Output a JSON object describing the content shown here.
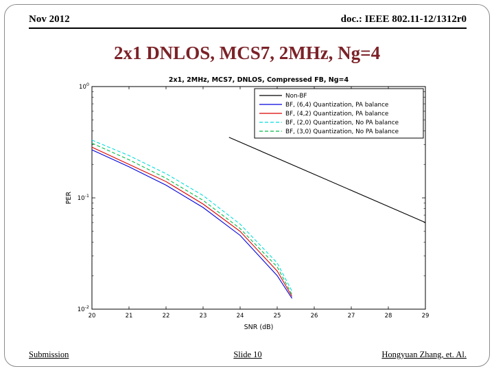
{
  "header": {
    "date": "Nov 2012",
    "doc": "doc.: IEEE 802.11-12/1312r0"
  },
  "title": "2x1 DNLOS, MCS7, 2MHz, Ng=4",
  "footer": {
    "left": "Submission",
    "center": "Slide 10",
    "right": "Hongyuan Zhang, et. Al."
  },
  "colors": {
    "title_color": "#7b2228",
    "axis_color": "#000000"
  },
  "chart_data": {
    "type": "line",
    "title": "2x1, 2MHz, MCS7, DNLOS, Compressed FB, Ng=4",
    "xlabel": "SNR (dB)",
    "ylabel": "PER",
    "xlim": [
      20,
      29
    ],
    "ylog_exponents": [
      0,
      -1,
      -2
    ],
    "x_ticks": [
      20,
      21,
      22,
      23,
      24,
      25,
      26,
      27,
      28,
      29
    ],
    "grid": false,
    "legend_position": "upper right",
    "series": [
      {
        "name": "Non-BF",
        "color": "#000000",
        "dash": "solid",
        "x": [
          23.7,
          29
        ],
        "y": [
          0.35,
          0.06
        ]
      },
      {
        "name": "BF, (6,4) Quantization, PA balance",
        "color": "#0000dd",
        "dash": "solid",
        "x": [
          20,
          21,
          22,
          23,
          24,
          25,
          25.4
        ],
        "y": [
          0.27,
          0.19,
          0.13,
          0.082,
          0.046,
          0.02,
          0.0125
        ]
      },
      {
        "name": "BF, (4,2) Quantization, PA balance",
        "color": "#dd0000",
        "dash": "solid",
        "x": [
          20,
          21,
          22,
          23,
          24,
          25,
          25.4
        ],
        "y": [
          0.285,
          0.2,
          0.14,
          0.088,
          0.05,
          0.022,
          0.013
        ]
      },
      {
        "name": "BF, (2,0) Quantization, No PA balance",
        "color": "#00dddd",
        "dash": "dashed",
        "x": [
          20,
          21,
          22,
          23,
          24,
          25,
          25.4
        ],
        "y": [
          0.33,
          0.24,
          0.165,
          0.105,
          0.058,
          0.026,
          0.0145
        ]
      },
      {
        "name": "BF, (3,0) Quantization, No PA balance",
        "color": "#00bb44",
        "dash": "dashed",
        "x": [
          20,
          21,
          22,
          23,
          24,
          25,
          25.4
        ],
        "y": [
          0.31,
          0.22,
          0.15,
          0.095,
          0.053,
          0.024,
          0.0135
        ]
      }
    ]
  }
}
